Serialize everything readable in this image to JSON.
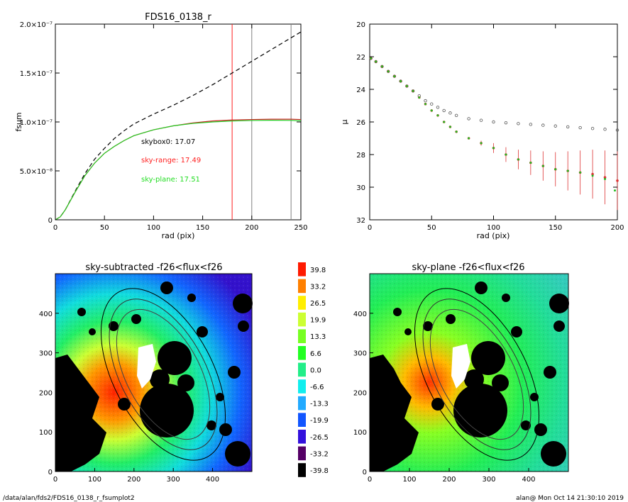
{
  "footer": {
    "path": "/data/alan/fds2/FDS16_0138_r_fsumplot2",
    "stamp": "alan@  Mon Oct 14 21:30:10 2019"
  },
  "chart_data": [
    {
      "type": "line",
      "title": "FDS16_0138_r",
      "xlabel": "rad (pix)",
      "ylabel": "fsum",
      "xlim": [
        0,
        250
      ],
      "ylim": [
        0,
        2e-07
      ],
      "xticks": [
        "0",
        "50",
        "100",
        "150",
        "200",
        "250"
      ],
      "yticks": [
        "0",
        "5.0×10⁻⁸",
        "1.0×10⁻⁷",
        "1.5×10⁻⁷",
        "2.0×10⁻⁷"
      ],
      "ytick_values": [
        0,
        5e-08,
        1e-07,
        1.5e-07,
        2e-07
      ],
      "vlines": [
        {
          "x": 180,
          "color": "#ff2020"
        },
        {
          "x": 200,
          "color": "#808080"
        },
        {
          "x": 240,
          "color": "#808080"
        }
      ],
      "annotations": [
        {
          "text": "skybox0: 17.07",
          "color": "#000000"
        },
        {
          "text": "sky-range: 17.49",
          "color": "#ff2020"
        },
        {
          "text": "sky-plane: 17.51",
          "color": "#22dd22"
        }
      ],
      "series": [
        {
          "style": "dashed",
          "color": "#000000",
          "x": [
            0,
            5,
            10,
            20,
            30,
            40,
            50,
            60,
            70,
            80,
            100,
            120,
            140,
            160,
            180,
            200,
            220,
            240,
            250
          ],
          "y": [
            0,
            3e-09,
            1e-08,
            2.9e-08,
            4.7e-08,
            6.2e-08,
            7.3e-08,
            8.3e-08,
            9.1e-08,
            9.8e-08,
            1.08e-07,
            1.17e-07,
            1.27e-07,
            1.38e-07,
            1.5e-07,
            1.62e-07,
            1.74e-07,
            1.86e-07,
            1.92e-07
          ]
        },
        {
          "style": "solid",
          "color": "#cc2222",
          "x": [
            0,
            5,
            10,
            20,
            30,
            40,
            50,
            60,
            70,
            80,
            100,
            120,
            140,
            160,
            180,
            200,
            220,
            240,
            250
          ],
          "y": [
            0,
            3e-09,
            1e-08,
            2.8e-08,
            4.5e-08,
            5.8e-08,
            6.8e-08,
            7.5e-08,
            8.1e-08,
            8.6e-08,
            9.2e-08,
            9.6e-08,
            9.9e-08,
            1.01e-07,
            1.02e-07,
            1.025e-07,
            1.028e-07,
            1.028e-07,
            1.025e-07
          ]
        },
        {
          "style": "solid",
          "color": "#22cc22",
          "x": [
            0,
            5,
            10,
            20,
            30,
            40,
            50,
            60,
            70,
            80,
            100,
            120,
            140,
            160,
            180,
            200,
            220,
            240,
            250
          ],
          "y": [
            0,
            3e-09,
            1e-08,
            2.8e-08,
            4.5e-08,
            5.8e-08,
            6.8e-08,
            7.5e-08,
            8.1e-08,
            8.6e-08,
            9.2e-08,
            9.6e-08,
            9.85e-08,
            1e-07,
            1.01e-07,
            1.015e-07,
            1.017e-07,
            1.016e-07,
            1.012e-07
          ]
        }
      ]
    },
    {
      "type": "scatter",
      "title": "",
      "xlabel": "rad (pix)",
      "ylabel": "μ",
      "xlim": [
        0,
        200
      ],
      "ylim": [
        32,
        20
      ],
      "xticks": [
        "0",
        "50",
        "100",
        "150",
        "200"
      ],
      "yticks": [
        "20",
        "22",
        "24",
        "26",
        "28",
        "30",
        "32"
      ],
      "ytick_values": [
        20,
        22,
        24,
        26,
        28,
        30,
        32
      ],
      "series": [
        {
          "marker": "open-circle",
          "color": "#555555",
          "x": [
            1,
            5,
            10,
            15,
            20,
            25,
            30,
            35,
            40,
            45,
            50,
            55,
            60,
            65,
            70,
            80,
            90,
            100,
            110,
            120,
            130,
            140,
            150,
            160,
            170,
            180,
            190,
            200
          ],
          "y": [
            22.1,
            22.3,
            22.6,
            22.9,
            23.2,
            23.5,
            23.8,
            24.1,
            24.4,
            24.7,
            24.9,
            25.1,
            25.3,
            25.45,
            25.6,
            25.8,
            25.9,
            26.0,
            26.05,
            26.1,
            26.15,
            26.2,
            26.25,
            26.3,
            26.35,
            26.4,
            26.45,
            26.5
          ]
        },
        {
          "marker": "dot-errorbar",
          "color": "#dd3333",
          "x": [
            1,
            5,
            10,
            15,
            20,
            25,
            30,
            35,
            40,
            45,
            50,
            55,
            60,
            65,
            70,
            80,
            90,
            100,
            110,
            120,
            130,
            140,
            150,
            160,
            170,
            180,
            190,
            200
          ],
          "y": [
            22.1,
            22.3,
            22.6,
            22.9,
            23.2,
            23.5,
            23.8,
            24.1,
            24.5,
            24.9,
            25.3,
            25.6,
            26.0,
            26.3,
            26.6,
            27.0,
            27.3,
            27.6,
            28.0,
            28.3,
            28.5,
            28.7,
            28.9,
            29.0,
            29.1,
            29.2,
            29.4,
            29.6
          ]
        },
        {
          "marker": "dot",
          "color": "#22bb22",
          "x": [
            1,
            5,
            10,
            15,
            20,
            25,
            30,
            35,
            40,
            45,
            50,
            55,
            60,
            65,
            70,
            80,
            90,
            100,
            110,
            120,
            130,
            140,
            150,
            160,
            170,
            180,
            190,
            198
          ],
          "y": [
            22.1,
            22.3,
            22.6,
            22.9,
            23.2,
            23.5,
            23.8,
            24.1,
            24.5,
            24.9,
            25.3,
            25.6,
            26.0,
            26.3,
            26.6,
            27.0,
            27.3,
            27.6,
            28.0,
            28.3,
            28.5,
            28.7,
            28.9,
            29.0,
            29.1,
            29.3,
            29.5,
            30.2
          ]
        }
      ]
    },
    {
      "type": "heatmap",
      "title": "sky-subtracted -f26<flux<f26",
      "xlim": [
        0,
        500
      ],
      "ylim": [
        0,
        500
      ],
      "xticks": [
        "0",
        "100",
        "200",
        "300",
        "400"
      ],
      "yticks": [
        "0",
        "100",
        "200",
        "300",
        "400"
      ],
      "overlay": "ellipses"
    },
    {
      "type": "heatmap",
      "title": "sky-plane -f26<flux<f26",
      "xlim": [
        0,
        500
      ],
      "ylim": [
        0,
        500
      ],
      "xticks": [
        "0",
        "100",
        "200",
        "300",
        "400"
      ],
      "yticks": [
        "0",
        "100",
        "200",
        "300",
        "400"
      ],
      "overlay": "ellipses"
    }
  ],
  "colorbar": {
    "labels": [
      "39.8",
      "33.2",
      "26.5",
      "19.9",
      "13.3",
      "6.6",
      "0.0",
      "-6.6",
      "-13.3",
      "-19.9",
      "-26.5",
      "-33.2",
      "-39.8"
    ],
    "colors": [
      "#ff1a00",
      "#ff8000",
      "#ffee00",
      "#ccff33",
      "#77ff22",
      "#22ff22",
      "#22ee88",
      "#11eeee",
      "#22aaff",
      "#1155ff",
      "#3311dd",
      "#550066",
      "#000000"
    ]
  }
}
